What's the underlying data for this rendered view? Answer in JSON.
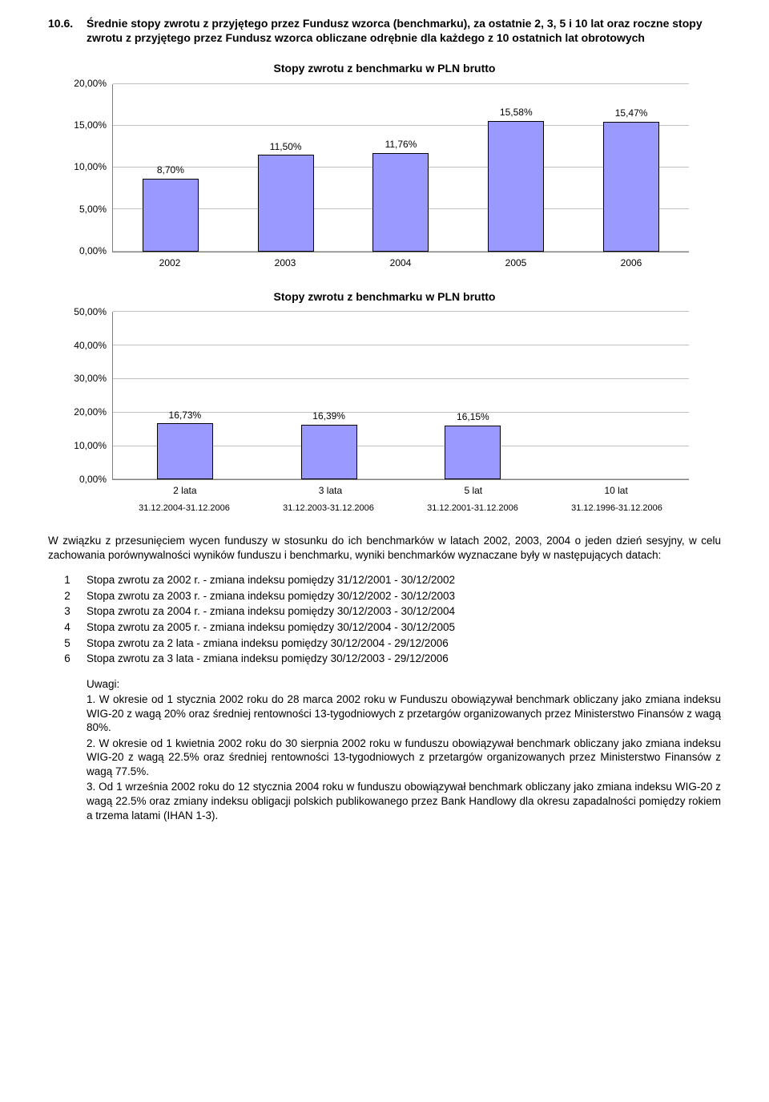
{
  "section": {
    "number": "10.6.",
    "title": "Średnie stopy zwrotu z przyjętego przez Fundusz wzorca (benchmarku), za ostatnie 2, 3, 5 i 10 lat oraz roczne stopy zwrotu z przyjętego przez Fundusz wzorca obliczane odrębnie dla każdego z 10 ostatnich lat obrotowych"
  },
  "chart1": {
    "title": "Stopy zwrotu z benchmarku w PLN brutto",
    "bar_color": "#9999ff",
    "border_color": "#000000",
    "grid_color": "#c0c0c0",
    "ymax": 20,
    "ystep": 5,
    "ylabels": [
      "0,00%",
      "5,00%",
      "10,00%",
      "15,00%",
      "20,00%"
    ],
    "categories": [
      "2002",
      "2003",
      "2004",
      "2005",
      "2006"
    ],
    "values": [
      8.7,
      11.5,
      11.76,
      15.58,
      15.47
    ],
    "value_labels": [
      "8,70%",
      "11,50%",
      "11,76%",
      "15,58%",
      "15,47%"
    ]
  },
  "chart2": {
    "title": "Stopy zwrotu z benchmarku w PLN brutto",
    "bar_color": "#9999ff",
    "border_color": "#000000",
    "grid_color": "#c0c0c0",
    "ymax": 50,
    "ystep": 10,
    "ylabels": [
      "0,00%",
      "10,00%",
      "20,00%",
      "30,00%",
      "40,00%",
      "50,00%"
    ],
    "categories": [
      "2 lata",
      "3 lata",
      "5 lat",
      "10 lat"
    ],
    "sublabels": [
      "31.12.2004-31.12.2006",
      "31.12.2003-31.12.2006",
      "31.12.2001-31.12.2006",
      "31.12.1996-31.12.2006"
    ],
    "values": [
      16.73,
      16.39,
      16.15,
      null
    ],
    "value_labels": [
      "16,73%",
      "16,39%",
      "16,15%",
      ""
    ]
  },
  "paragraph": "W związku z przesunięciem wycen funduszy w stosunku do  ich benchmarków w latach 2002, 2003, 2004 o jeden dzień sesyjny, w celu zachowania porównywalności wyników funduszu i benchmarku, wyniki benchmarków wyznaczane były w następujących datach:",
  "list": [
    {
      "n": "1",
      "t": "Stopa zwrotu za 2002 r.  - zmiana indeksu pomiędzy 31/12/2001 - 30/12/2002"
    },
    {
      "n": "2",
      "t": "Stopa zwrotu za 2003 r.  - zmiana indeksu pomiędzy 30/12/2002 - 30/12/2003"
    },
    {
      "n": "3",
      "t": "Stopa zwrotu za 2004 r.  - zmiana indeksu pomiędzy 30/12/2003 - 30/12/2004"
    },
    {
      "n": "4",
      "t": "Stopa zwrotu za 2005 r.  - zmiana indeksu pomiędzy 30/12/2004 - 30/12/2005"
    },
    {
      "n": "5",
      "t": "Stopa zwrotu za 2 lata - zmiana indeksu pomiędzy 30/12/2004 - 29/12/2006"
    },
    {
      "n": "6",
      "t": "Stopa zwrotu za 3 lata - zmiana indeksu pomiędzy 30/12/2003 - 29/12/2006"
    }
  ],
  "uwagi": {
    "heading": "Uwagi:",
    "items": [
      "1. W okresie od 1 stycznia 2002 roku do 28 marca 2002 roku w Funduszu obowiązywał benchmark obliczany jako zmiana indeksu WIG-20 z wagą 20% oraz średniej rentowności 13-tygodniowych  z przetargów organizowanych przez Ministerstwo Finansów z wagą 80%.",
      "2. W okresie od 1 kwietnia 2002 roku do 30 sierpnia 2002 roku w funduszu obowiązywał benchmark obliczany jako zmiana indeksu WIG-20 z wagą 22.5% oraz średniej rentowności 13-tygodniowych  z przetargów organizowanych przez Ministerstwo Finansów z wagą 77.5%.",
      "3. Od 1 września 2002 roku do 12 stycznia 2004 roku w funduszu obowiązywał benchmark obliczany jako zmiana indeksu WIG-20 z wagą 22.5% oraz zmiany indeksu obligacji polskich publikowanego przez Bank Handlowy dla okresu zapadalności pomiędzy rokiem a trzema latami (IHAN 1-3)."
    ]
  }
}
